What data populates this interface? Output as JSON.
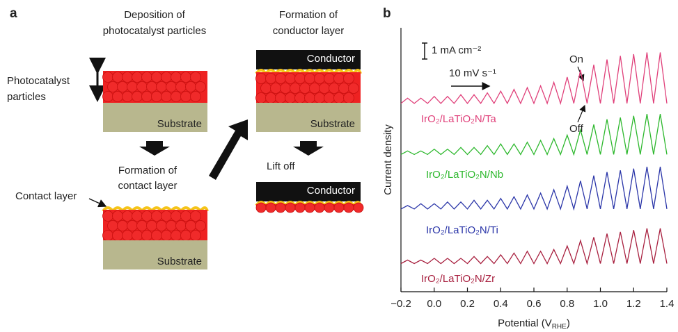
{
  "panel_a": {
    "label": "a",
    "deposition": [
      "Deposition of",
      "photocatalyst particles"
    ],
    "conductor_formation": [
      "Formation of",
      "conductor layer"
    ],
    "particles_label": [
      "Photocatalyst",
      "particles"
    ],
    "contact_formation": [
      "Formation of",
      "contact layer"
    ],
    "contact_label": "Contact layer",
    "lift_off": "Lift off",
    "substrate": [
      "Substrate",
      "Substrate",
      "Substrate"
    ],
    "conductor": [
      "Conductor",
      "Conductor"
    ]
  },
  "chart_data": {
    "type": "line",
    "panel_label": "b",
    "x_label": [
      "Potential (V",
      "RHE",
      ")"
    ],
    "y_label": "Current density",
    "annotations": {
      "scale": "1 mA cm⁻²",
      "scan_rate": "10 mV s⁻¹",
      "on": "On",
      "off": "Off"
    },
    "x": [
      -0.2,
      -0.16,
      -0.12,
      -0.08,
      -0.04,
      0,
      0.04,
      0.08,
      0.12,
      0.16,
      0.2,
      0.24,
      0.28,
      0.32,
      0.36,
      0.4,
      0.44,
      0.48,
      0.52,
      0.56,
      0.6,
      0.64,
      0.68,
      0.72,
      0.76,
      0.8,
      0.84,
      0.88,
      0.92,
      0.96,
      1.0,
      1.04,
      1.08,
      1.12,
      1.16,
      1.2,
      1.24,
      1.28,
      1.32,
      1.36,
      1.4
    ],
    "series": [
      {
        "name": "IrO₂/LaTiO₂N/Ta",
        "color": "#e0407a",
        "values": [
          10.7,
          11.0,
          10.7,
          11.0,
          10.7,
          11.1,
          10.7,
          11.1,
          10.7,
          11.2,
          10.7,
          11.2,
          10.7,
          11.3,
          10.7,
          11.4,
          10.7,
          11.5,
          10.7,
          11.6,
          10.7,
          11.7,
          10.7,
          11.9,
          10.7,
          12.2,
          10.7,
          12.6,
          10.7,
          12.9,
          10.7,
          13.2,
          10.7,
          13.4,
          10.7,
          13.5,
          10.7,
          13.6,
          10.7,
          13.6,
          10.7
        ]
      },
      {
        "name": "IrO₂/LaTiO₂N/Nb",
        "color": "#2db82d",
        "values": [
          7.8,
          8.0,
          7.8,
          8.0,
          7.8,
          8.1,
          7.8,
          8.1,
          7.8,
          8.2,
          7.8,
          8.2,
          7.8,
          8.3,
          7.8,
          8.4,
          7.8,
          8.4,
          7.8,
          8.5,
          7.8,
          8.6,
          7.8,
          8.7,
          7.8,
          8.9,
          7.8,
          9.2,
          7.8,
          9.5,
          7.8,
          9.8,
          7.8,
          9.9,
          7.8,
          10.0,
          7.8,
          10.1,
          7.8,
          10.1,
          7.8
        ]
      },
      {
        "name": "IrO₂/LaTiO₂N/Ti",
        "color": "#2a35a8",
        "values": [
          4.7,
          4.9,
          4.7,
          5.0,
          4.7,
          5.0,
          4.7,
          5.1,
          4.7,
          5.1,
          4.7,
          5.2,
          4.7,
          5.2,
          4.7,
          5.3,
          4.7,
          5.4,
          4.7,
          5.5,
          4.7,
          5.6,
          4.7,
          5.8,
          4.7,
          6.0,
          4.7,
          6.3,
          4.7,
          6.6,
          4.7,
          6.8,
          4.7,
          6.9,
          4.7,
          7.0,
          4.7,
          7.1,
          4.7,
          7.1,
          4.7
        ]
      },
      {
        "name": "IrO₂/LaTiO₂N/Zr",
        "color": "#a8203f",
        "values": [
          1.6,
          1.8,
          1.6,
          1.8,
          1.6,
          1.9,
          1.6,
          1.9,
          1.6,
          1.9,
          1.6,
          2.0,
          1.6,
          2.0,
          1.6,
          2.1,
          1.6,
          2.2,
          1.6,
          2.3,
          1.6,
          2.3,
          1.6,
          2.4,
          1.6,
          2.6,
          1.6,
          2.9,
          1.6,
          3.1,
          1.6,
          3.3,
          1.6,
          3.4,
          1.6,
          3.5,
          1.6,
          3.6,
          1.6,
          3.6,
          1.6
        ]
      }
    ],
    "xlim": [
      -0.2,
      1.4
    ],
    "ylim": [
      0,
      15
    ],
    "xticks": [
      {
        "value": -0.2,
        "label": "−0.2"
      },
      {
        "value": 0,
        "label": "0.0"
      },
      0.2,
      0.4,
      0.6,
      0.8,
      {
        "value": 1,
        "label": "1.0"
      },
      1.2,
      1.4
    ]
  }
}
